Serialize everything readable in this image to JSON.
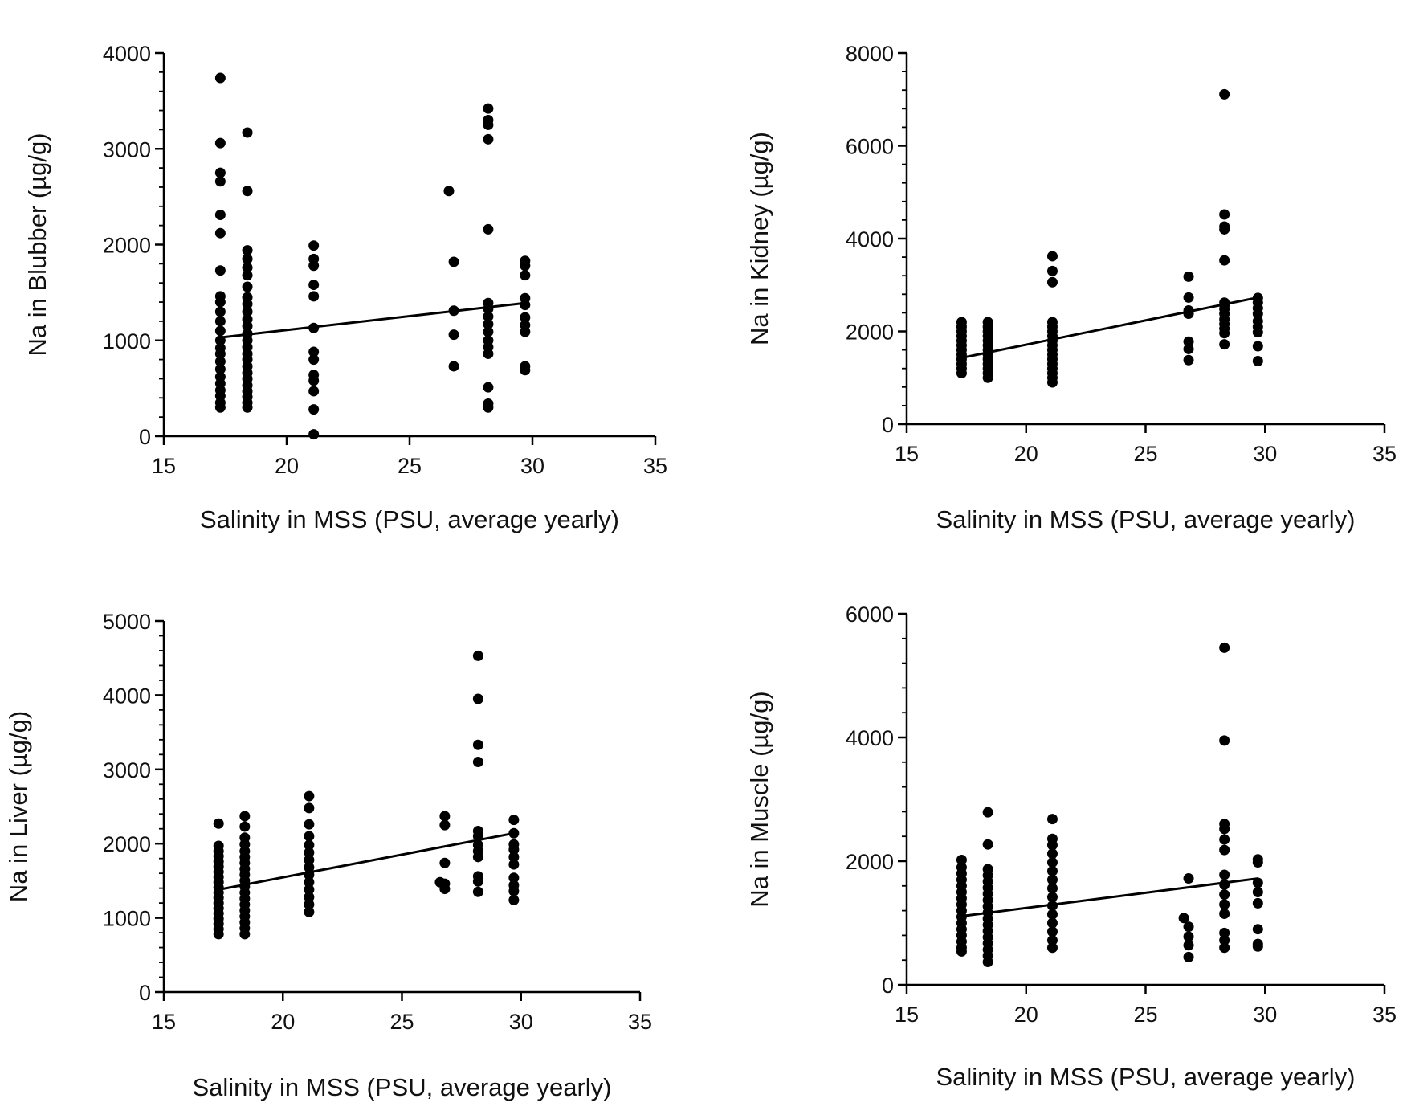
{
  "colors": {
    "ink": "#000000",
    "text": "#111111",
    "background": "#ffffff"
  },
  "chart_data": [
    {
      "type": "scatter",
      "panel": "top-left",
      "xlabel": "Salinity in MSS (PSU, average yearly)",
      "ylabel": "Na in Blubber (µg/g)",
      "xlim": [
        15,
        35
      ],
      "ylim": [
        0,
        4000
      ],
      "xticks": [
        15,
        20,
        25,
        30,
        35
      ],
      "yticks": [
        0,
        1000,
        2000,
        3000,
        4000
      ],
      "regression_line": [
        [
          17.3,
          1030
        ],
        [
          29.7,
          1390
        ]
      ],
      "points": [
        [
          17.3,
          3740
        ],
        [
          17.3,
          3060
        ],
        [
          17.3,
          2750
        ],
        [
          17.3,
          2660
        ],
        [
          17.3,
          2310
        ],
        [
          17.3,
          2120
        ],
        [
          17.3,
          1730
        ],
        [
          17.3,
          1460
        ],
        [
          17.3,
          1400
        ],
        [
          17.3,
          1300
        ],
        [
          17.3,
          1200
        ],
        [
          17.3,
          1100
        ],
        [
          17.3,
          1000
        ],
        [
          17.3,
          920
        ],
        [
          17.3,
          860
        ],
        [
          17.3,
          780
        ],
        [
          17.3,
          700
        ],
        [
          17.3,
          620
        ],
        [
          17.3,
          550
        ],
        [
          17.3,
          480
        ],
        [
          17.3,
          420
        ],
        [
          17.3,
          350
        ],
        [
          17.3,
          300
        ],
        [
          18.4,
          3170
        ],
        [
          18.4,
          2560
        ],
        [
          18.4,
          1940
        ],
        [
          18.4,
          1850
        ],
        [
          18.4,
          1760
        ],
        [
          18.4,
          1680
        ],
        [
          18.4,
          1560
        ],
        [
          18.4,
          1450
        ],
        [
          18.4,
          1380
        ],
        [
          18.4,
          1300
        ],
        [
          18.4,
          1220
        ],
        [
          18.4,
          1150
        ],
        [
          18.4,
          1070
        ],
        [
          18.4,
          1000
        ],
        [
          18.4,
          930
        ],
        [
          18.4,
          860
        ],
        [
          18.4,
          800
        ],
        [
          18.4,
          730
        ],
        [
          18.4,
          660
        ],
        [
          18.4,
          600
        ],
        [
          18.4,
          530
        ],
        [
          18.4,
          470
        ],
        [
          18.4,
          410
        ],
        [
          18.4,
          350
        ],
        [
          18.4,
          300
        ],
        [
          21.1,
          1990
        ],
        [
          21.1,
          1850
        ],
        [
          21.1,
          1780
        ],
        [
          21.1,
          1580
        ],
        [
          21.1,
          1460
        ],
        [
          21.1,
          1130
        ],
        [
          21.1,
          880
        ],
        [
          21.1,
          800
        ],
        [
          21.1,
          640
        ],
        [
          21.1,
          580
        ],
        [
          21.1,
          470
        ],
        [
          21.1,
          280
        ],
        [
          21.1,
          20
        ],
        [
          26.6,
          2560
        ],
        [
          26.8,
          1820
        ],
        [
          26.8,
          1310
        ],
        [
          26.8,
          1060
        ],
        [
          26.8,
          730
        ],
        [
          28.2,
          3420
        ],
        [
          28.2,
          3300
        ],
        [
          28.2,
          3250
        ],
        [
          28.2,
          3100
        ],
        [
          28.2,
          2160
        ],
        [
          28.2,
          1390
        ],
        [
          28.2,
          1330
        ],
        [
          28.2,
          1250
        ],
        [
          28.2,
          1170
        ],
        [
          28.2,
          1090
        ],
        [
          28.2,
          1000
        ],
        [
          28.2,
          930
        ],
        [
          28.2,
          860
        ],
        [
          28.2,
          510
        ],
        [
          28.2,
          340
        ],
        [
          28.2,
          300
        ],
        [
          29.7,
          1830
        ],
        [
          29.7,
          1780
        ],
        [
          29.7,
          1680
        ],
        [
          29.7,
          1440
        ],
        [
          29.7,
          1370
        ],
        [
          29.7,
          1240
        ],
        [
          29.7,
          1160
        ],
        [
          29.7,
          1090
        ],
        [
          29.7,
          730
        ],
        [
          29.7,
          690
        ]
      ]
    },
    {
      "type": "scatter",
      "panel": "top-right",
      "xlabel": "Salinity in MSS (PSU, average yearly)",
      "ylabel": "Na in Kidney (µg/g)",
      "xlim": [
        15,
        35
      ],
      "ylim": [
        0,
        8000
      ],
      "xticks": [
        15,
        20,
        25,
        30,
        35
      ],
      "yticks": [
        0,
        2000,
        4000,
        6000,
        8000
      ],
      "regression_line": [
        [
          17.3,
          1430
        ],
        [
          29.7,
          2730
        ]
      ],
      "points": [
        [
          17.3,
          2200
        ],
        [
          17.3,
          2100
        ],
        [
          17.3,
          2000
        ],
        [
          17.3,
          1900
        ],
        [
          17.3,
          1800
        ],
        [
          17.3,
          1700
        ],
        [
          17.3,
          1600
        ],
        [
          17.3,
          1500
        ],
        [
          17.3,
          1400
        ],
        [
          17.3,
          1300
        ],
        [
          17.3,
          1200
        ],
        [
          17.3,
          1100
        ],
        [
          18.4,
          2200
        ],
        [
          18.4,
          2100
        ],
        [
          18.4,
          2000
        ],
        [
          18.4,
          1900
        ],
        [
          18.4,
          1800
        ],
        [
          18.4,
          1700
        ],
        [
          18.4,
          1600
        ],
        [
          18.4,
          1500
        ],
        [
          18.4,
          1400
        ],
        [
          18.4,
          1300
        ],
        [
          18.4,
          1200
        ],
        [
          18.4,
          1100
        ],
        [
          18.4,
          1000
        ],
        [
          21.1,
          3620
        ],
        [
          21.1,
          3300
        ],
        [
          21.1,
          3060
        ],
        [
          21.1,
          2200
        ],
        [
          21.1,
          2100
        ],
        [
          21.1,
          2000
        ],
        [
          21.1,
          1900
        ],
        [
          21.1,
          1800
        ],
        [
          21.1,
          1700
        ],
        [
          21.1,
          1600
        ],
        [
          21.1,
          1500
        ],
        [
          21.1,
          1400
        ],
        [
          21.1,
          1300
        ],
        [
          21.1,
          1200
        ],
        [
          21.1,
          1100
        ],
        [
          21.1,
          1000
        ],
        [
          21.1,
          900
        ],
        [
          26.8,
          3180
        ],
        [
          26.8,
          2730
        ],
        [
          26.8,
          2450
        ],
        [
          26.8,
          2380
        ],
        [
          26.8,
          1780
        ],
        [
          26.8,
          1620
        ],
        [
          26.8,
          1380
        ],
        [
          28.3,
          7110
        ],
        [
          28.3,
          4520
        ],
        [
          28.3,
          4260
        ],
        [
          28.3,
          4200
        ],
        [
          28.3,
          3530
        ],
        [
          28.3,
          2620
        ],
        [
          28.3,
          2560
        ],
        [
          28.3,
          2480
        ],
        [
          28.3,
          2380
        ],
        [
          28.3,
          2260
        ],
        [
          28.3,
          2160
        ],
        [
          28.3,
          2060
        ],
        [
          28.3,
          1960
        ],
        [
          28.3,
          1720
        ],
        [
          29.7,
          2720
        ],
        [
          29.7,
          2620
        ],
        [
          29.7,
          2500
        ],
        [
          29.7,
          2380
        ],
        [
          29.7,
          2220
        ],
        [
          29.7,
          2100
        ],
        [
          29.7,
          1980
        ],
        [
          29.7,
          1680
        ],
        [
          29.7,
          1360
        ]
      ]
    },
    {
      "type": "scatter",
      "panel": "bottom-left",
      "xlabel": "Salinity in MSS (PSU, average yearly)",
      "ylabel": "Na in Liver (µg/g)",
      "xlim": [
        15,
        35
      ],
      "ylim": [
        0,
        5000
      ],
      "xticks": [
        15,
        20,
        25,
        30,
        35
      ],
      "yticks": [
        0,
        1000,
        2000,
        3000,
        4000,
        5000
      ],
      "regression_line": [
        [
          17.3,
          1380
        ],
        [
          29.7,
          2140
        ]
      ],
      "points": [
        [
          17.3,
          2270
        ],
        [
          17.3,
          1970
        ],
        [
          17.3,
          1900
        ],
        [
          17.3,
          1830
        ],
        [
          17.3,
          1760
        ],
        [
          17.3,
          1690
        ],
        [
          17.3,
          1620
        ],
        [
          17.3,
          1550
        ],
        [
          17.3,
          1480
        ],
        [
          17.3,
          1410
        ],
        [
          17.3,
          1340
        ],
        [
          17.3,
          1270
        ],
        [
          17.3,
          1200
        ],
        [
          17.3,
          1130
        ],
        [
          17.3,
          1060
        ],
        [
          17.3,
          990
        ],
        [
          17.3,
          920
        ],
        [
          17.3,
          850
        ],
        [
          17.3,
          780
        ],
        [
          18.4,
          2370
        ],
        [
          18.4,
          2230
        ],
        [
          18.4,
          2080
        ],
        [
          18.4,
          1990
        ],
        [
          18.4,
          1900
        ],
        [
          18.4,
          1820
        ],
        [
          18.4,
          1740
        ],
        [
          18.4,
          1660
        ],
        [
          18.4,
          1580
        ],
        [
          18.4,
          1500
        ],
        [
          18.4,
          1420
        ],
        [
          18.4,
          1340
        ],
        [
          18.4,
          1260
        ],
        [
          18.4,
          1180
        ],
        [
          18.4,
          1100
        ],
        [
          18.4,
          1020
        ],
        [
          18.4,
          940
        ],
        [
          18.4,
          860
        ],
        [
          18.4,
          780
        ],
        [
          21.1,
          2640
        ],
        [
          21.1,
          2480
        ],
        [
          21.1,
          2260
        ],
        [
          21.1,
          2100
        ],
        [
          21.1,
          1980
        ],
        [
          21.1,
          1880
        ],
        [
          21.1,
          1780
        ],
        [
          21.1,
          1680
        ],
        [
          21.1,
          1580
        ],
        [
          21.1,
          1480
        ],
        [
          21.1,
          1380
        ],
        [
          21.1,
          1280
        ],
        [
          21.1,
          1180
        ],
        [
          21.1,
          1080
        ],
        [
          26.6,
          1480
        ],
        [
          26.8,
          2370
        ],
        [
          26.8,
          2250
        ],
        [
          26.8,
          1740
        ],
        [
          26.8,
          1460
        ],
        [
          26.8,
          1390
        ],
        [
          28.2,
          4530
        ],
        [
          28.2,
          3950
        ],
        [
          28.2,
          3330
        ],
        [
          28.2,
          3100
        ],
        [
          28.2,
          2170
        ],
        [
          28.2,
          2100
        ],
        [
          28.2,
          1980
        ],
        [
          28.2,
          1900
        ],
        [
          28.2,
          1820
        ],
        [
          28.2,
          1560
        ],
        [
          28.2,
          1490
        ],
        [
          28.2,
          1350
        ],
        [
          29.7,
          2320
        ],
        [
          29.7,
          2140
        ],
        [
          29.7,
          1990
        ],
        [
          29.7,
          1920
        ],
        [
          29.7,
          1820
        ],
        [
          29.7,
          1720
        ],
        [
          29.7,
          1540
        ],
        [
          29.7,
          1440
        ],
        [
          29.7,
          1360
        ],
        [
          29.7,
          1240
        ]
      ]
    },
    {
      "type": "scatter",
      "panel": "bottom-right",
      "xlabel": "Salinity in MSS (PSU, average yearly)",
      "ylabel": "Na in Muscle (µg/g)",
      "xlim": [
        15,
        35
      ],
      "ylim": [
        0,
        6000
      ],
      "xticks": [
        15,
        20,
        25,
        30,
        35
      ],
      "yticks": [
        0,
        2000,
        4000,
        6000
      ],
      "regression_line": [
        [
          17.3,
          1110
        ],
        [
          29.7,
          1720
        ]
      ],
      "points": [
        [
          17.3,
          2020
        ],
        [
          17.3,
          1900
        ],
        [
          17.3,
          1800
        ],
        [
          17.3,
          1700
        ],
        [
          17.3,
          1600
        ],
        [
          17.3,
          1500
        ],
        [
          17.3,
          1400
        ],
        [
          17.3,
          1300
        ],
        [
          17.3,
          1200
        ],
        [
          17.3,
          1100
        ],
        [
          17.3,
          1000
        ],
        [
          17.3,
          900
        ],
        [
          17.3,
          800
        ],
        [
          17.3,
          700
        ],
        [
          17.3,
          600
        ],
        [
          17.3,
          540
        ],
        [
          18.4,
          2790
        ],
        [
          18.4,
          2270
        ],
        [
          18.4,
          1870
        ],
        [
          18.4,
          1770
        ],
        [
          18.4,
          1670
        ],
        [
          18.4,
          1570
        ],
        [
          18.4,
          1470
        ],
        [
          18.4,
          1370
        ],
        [
          18.4,
          1270
        ],
        [
          18.4,
          1170
        ],
        [
          18.4,
          1070
        ],
        [
          18.4,
          970
        ],
        [
          18.4,
          870
        ],
        [
          18.4,
          770
        ],
        [
          18.4,
          670
        ],
        [
          18.4,
          570
        ],
        [
          18.4,
          470
        ],
        [
          18.4,
          370
        ],
        [
          21.1,
          2680
        ],
        [
          21.1,
          2360
        ],
        [
          21.1,
          2260
        ],
        [
          21.1,
          2120
        ],
        [
          21.1,
          1980
        ],
        [
          21.1,
          1840
        ],
        [
          21.1,
          1700
        ],
        [
          21.1,
          1560
        ],
        [
          21.1,
          1420
        ],
        [
          21.1,
          1280
        ],
        [
          21.1,
          1140
        ],
        [
          21.1,
          1000
        ],
        [
          21.1,
          860
        ],
        [
          21.1,
          720
        ],
        [
          21.1,
          600
        ],
        [
          26.6,
          1080
        ],
        [
          26.8,
          1720
        ],
        [
          26.8,
          940
        ],
        [
          26.8,
          780
        ],
        [
          26.8,
          640
        ],
        [
          26.8,
          450
        ],
        [
          28.3,
          5450
        ],
        [
          28.3,
          3950
        ],
        [
          28.3,
          2600
        ],
        [
          28.3,
          2520
        ],
        [
          28.3,
          2350
        ],
        [
          28.3,
          2180
        ],
        [
          28.3,
          1780
        ],
        [
          28.3,
          1620
        ],
        [
          28.3,
          1460
        ],
        [
          28.3,
          1300
        ],
        [
          28.3,
          1150
        ],
        [
          28.3,
          840
        ],
        [
          28.3,
          720
        ],
        [
          28.3,
          600
        ],
        [
          29.7,
          2030
        ],
        [
          29.7,
          1980
        ],
        [
          29.7,
          1650
        ],
        [
          29.7,
          1500
        ],
        [
          29.7,
          1320
        ],
        [
          29.7,
          900
        ],
        [
          29.7,
          660
        ],
        [
          29.7,
          620
        ]
      ]
    }
  ]
}
